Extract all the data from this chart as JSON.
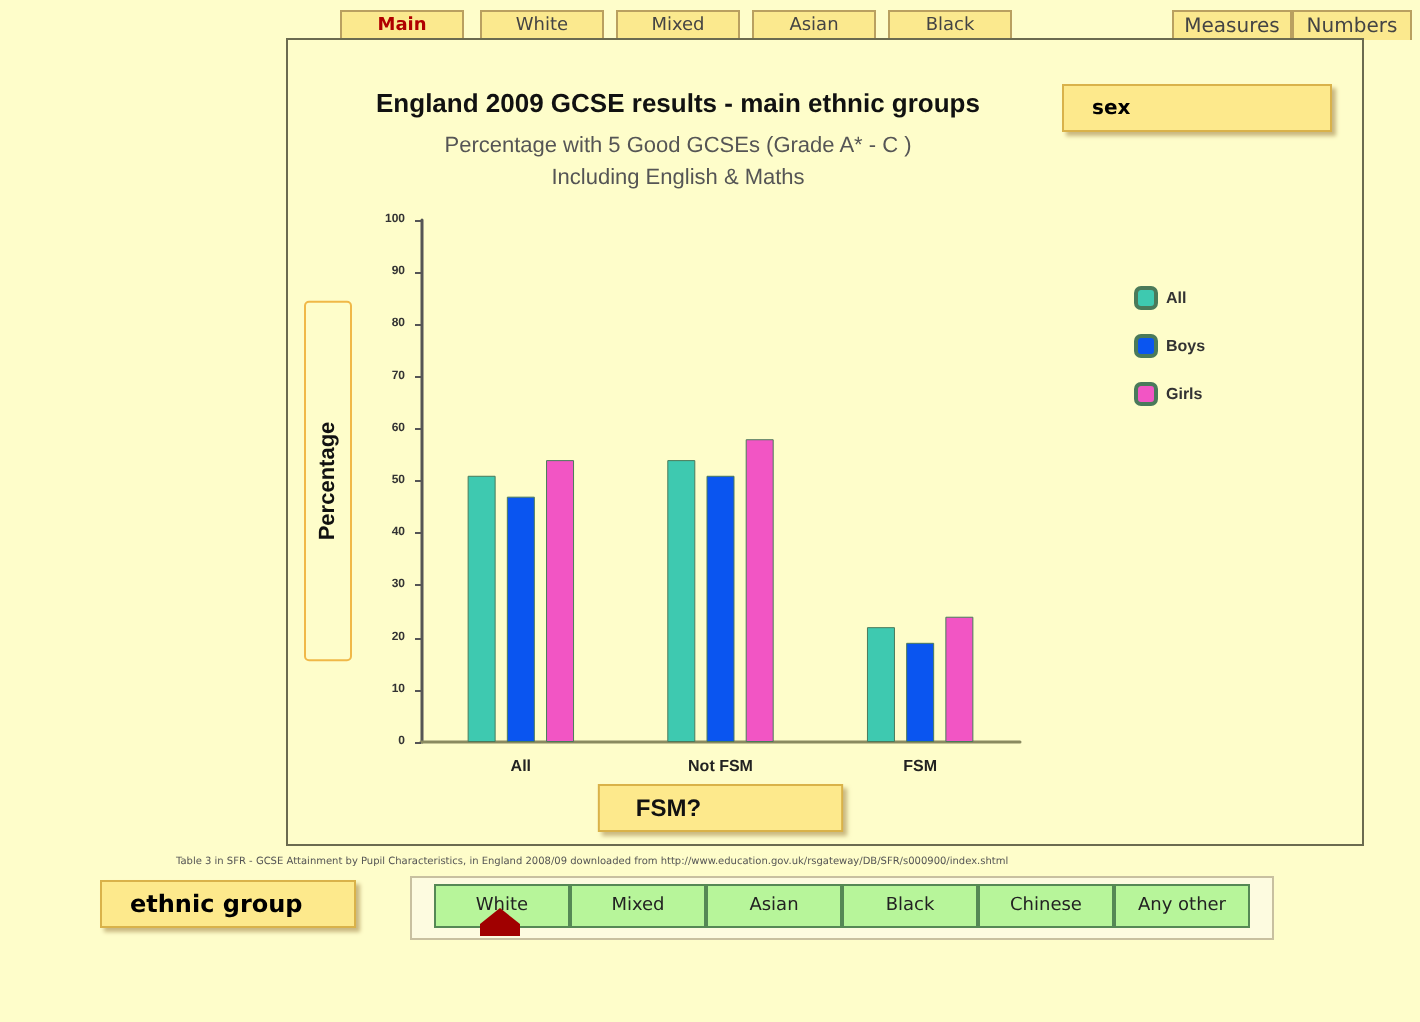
{
  "chart_data": {
    "type": "bar",
    "title": "England 2009 GCSE results - main ethnic groups",
    "subtitle": "Percentage with 5 Good GCSEs (Grade A* - C )\nIncluding English & Maths",
    "xlabel": "FSM?",
    "ylabel": "Percentage",
    "legend_title": "sex",
    "categories": [
      "All",
      "Not FSM",
      "FSM"
    ],
    "series": [
      {
        "name": "All",
        "color": "#3ec9b0",
        "values": [
          51,
          54,
          22
        ]
      },
      {
        "name": "Boys",
        "color": "#0a55f0",
        "values": [
          47,
          51,
          19
        ]
      },
      {
        "name": "Girls",
        "color": "#f255c4",
        "values": [
          54,
          58,
          24
        ]
      }
    ],
    "ylim": [
      0,
      100
    ],
    "yticks": [
      0,
      10,
      20,
      30,
      40,
      50,
      60,
      70,
      80,
      90,
      100
    ],
    "grid": false,
    "legend": "top right",
    "annotations": [
      "Main",
      "White",
      "Mixed",
      "Asian",
      "Black",
      "Measures",
      "Numbers",
      "Table 3 in SFR - GCSE Attainment by Pupil Characteristics, in England 2008/09 downloaded from http://www.education.gov.uk/rsgateway/DB/SFR/s000900/index.shtml",
      "ethnic group",
      "White",
      "Mixed",
      "Asian",
      "Black",
      "Chinese",
      "Any other"
    ]
  }
}
